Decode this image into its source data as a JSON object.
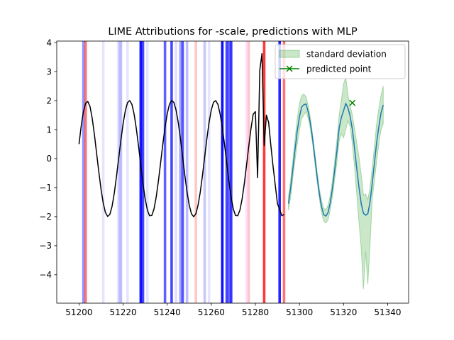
{
  "chart_data": {
    "type": "line",
    "title": "LIME Attributions for -scale, predictions with MLP",
    "xlim": [
      51189.9,
      51349.5
    ],
    "ylim": [
      -4.98,
      4.05
    ],
    "xticks": [
      51200,
      51220,
      51240,
      51260,
      51280,
      51300,
      51320,
      51340
    ],
    "yticks": [
      -4,
      -3,
      -2,
      -1,
      0,
      1,
      2,
      3,
      4
    ],
    "legend": {
      "placement": "top-right",
      "entries": [
        {
          "label": "standard deviation",
          "kind": "patch",
          "color": "#2ca02c"
        },
        {
          "label": "predicted point",
          "kind": "line-marker",
          "color": "#008000"
        }
      ]
    },
    "history_series": {
      "color": "#000000",
      "points": [
        [
          51200,
          0.5
        ],
        [
          51201,
          1.13
        ],
        [
          51202,
          1.62
        ],
        [
          51203,
          1.91
        ],
        [
          51204,
          1.97
        ],
        [
          51205,
          1.79
        ],
        [
          51206,
          1.38
        ],
        [
          51207,
          0.82
        ],
        [
          51208,
          0.17
        ],
        [
          51209,
          -0.47
        ],
        [
          51210,
          -1.06
        ],
        [
          51211,
          -1.54
        ],
        [
          51212,
          -1.86
        ],
        [
          51213,
          -1.99
        ],
        [
          51214,
          -1.92
        ],
        [
          51215,
          -1.64
        ],
        [
          51216,
          -1.19
        ],
        [
          51217,
          -0.61
        ],
        [
          51218,
          0.02
        ],
        [
          51219,
          0.64
        ],
        [
          51220,
          1.2
        ],
        [
          51221,
          1.65
        ],
        [
          51222,
          1.93
        ],
        [
          51223,
          2.0
        ],
        [
          51224,
          1.87
        ],
        [
          51225,
          1.53
        ],
        [
          51226,
          1.03
        ],
        [
          51227,
          0.43
        ],
        [
          51228,
          -0.22
        ],
        [
          51229,
          -0.85
        ],
        [
          51230,
          -1.38
        ],
        [
          51231,
          -1.77
        ],
        [
          51232,
          -1.97
        ],
        [
          51233,
          -1.96
        ],
        [
          51234,
          -1.74
        ],
        [
          51235,
          -1.33
        ],
        [
          51236,
          -0.78
        ],
        [
          51237,
          -0.15
        ],
        [
          51238,
          0.49
        ],
        [
          51239,
          1.07
        ],
        [
          51240,
          1.54
        ],
        [
          51241,
          1.87
        ],
        [
          51242,
          2.0
        ],
        [
          51243,
          1.94
        ],
        [
          51244,
          1.68
        ],
        [
          51245,
          1.25
        ],
        [
          51246,
          0.69
        ],
        [
          51247,
          0.06
        ],
        [
          51248,
          -0.58
        ],
        [
          51249,
          -1.15
        ],
        [
          51250,
          -1.6
        ],
        [
          51251,
          -1.9
        ],
        [
          51252,
          -2.0
        ],
        [
          51253,
          -1.9
        ],
        [
          51254,
          -1.6
        ],
        [
          51255,
          -1.15
        ],
        [
          51256,
          -0.58
        ],
        [
          51257,
          0.06
        ],
        [
          51258,
          0.69
        ],
        [
          51259,
          1.25
        ],
        [
          51260,
          1.68
        ],
        [
          51261,
          1.94
        ],
        [
          51262,
          2.0
        ],
        [
          51263,
          1.87
        ],
        [
          51264,
          1.54
        ],
        [
          51265,
          1.07
        ],
        [
          51266,
          0.49
        ],
        [
          51267,
          -0.15
        ],
        [
          51268,
          -0.78
        ],
        [
          51269,
          -1.33
        ],
        [
          51270,
          -1.74
        ],
        [
          51271,
          -1.96
        ],
        [
          51272,
          -1.97
        ],
        [
          51273,
          -1.77
        ],
        [
          51274,
          -1.38
        ],
        [
          51275,
          -0.85
        ],
        [
          51276,
          -0.22
        ],
        [
          51277,
          0.43
        ],
        [
          51278,
          1.03
        ],
        [
          51279,
          1.53
        ],
        [
          51280,
          1.62
        ],
        [
          51281,
          -0.65
        ],
        [
          51282,
          3.05
        ],
        [
          51283,
          3.62
        ],
        [
          51284,
          0.45
        ],
        [
          51285,
          1.5
        ],
        [
          51286,
          1.25
        ],
        [
          51287,
          0.47
        ],
        [
          51288,
          -0.25
        ],
        [
          51289,
          -0.9
        ],
        [
          51290,
          -1.55
        ],
        [
          51291,
          -1.75
        ],
        [
          51292,
          -1.97
        ],
        [
          51293,
          -1.92
        ]
      ]
    },
    "prediction_series": {
      "color": "#1f77b4",
      "points": [
        [
          51295,
          -1.55
        ],
        [
          51296,
          -1.02
        ],
        [
          51297,
          -0.35
        ],
        [
          51298,
          0.32
        ],
        [
          51299,
          0.95
        ],
        [
          51300,
          1.45
        ],
        [
          51301,
          1.78
        ],
        [
          51302,
          1.86
        ],
        [
          51303,
          1.88
        ],
        [
          51304,
          1.6
        ],
        [
          51305,
          1.2
        ],
        [
          51306,
          0.65
        ],
        [
          51307,
          0.02
        ],
        [
          51308,
          -0.62
        ],
        [
          51309,
          -1.2
        ],
        [
          51310,
          -1.65
        ],
        [
          51311,
          -1.93
        ],
        [
          51312,
          -1.98
        ],
        [
          51313,
          -1.85
        ],
        [
          51314,
          -1.5
        ],
        [
          51315,
          -1.0
        ],
        [
          51316,
          -0.38
        ],
        [
          51317,
          0.28
        ],
        [
          51318,
          1.05
        ],
        [
          51319,
          1.42
        ],
        [
          51320,
          1.65
        ],
        [
          51321,
          1.9
        ],
        [
          51322,
          1.75
        ],
        [
          51323,
          1.45
        ],
        [
          51324,
          1.0
        ],
        [
          51325,
          0.35
        ],
        [
          51326,
          -0.35
        ],
        [
          51327,
          -1.0
        ],
        [
          51328,
          -1.55
        ],
        [
          51329,
          -1.88
        ],
        [
          51330,
          -1.95
        ],
        [
          51331,
          -1.9
        ],
        [
          51332,
          -1.5
        ],
        [
          51333,
          -0.85
        ],
        [
          51334,
          -0.15
        ],
        [
          51335,
          0.55
        ],
        [
          51336,
          1.1
        ],
        [
          51337,
          1.58
        ],
        [
          51338,
          1.85
        ]
      ]
    },
    "std_band": {
      "color": "#2ca02c",
      "upper": [
        -1.32,
        -0.73,
        -0.05,
        0.69,
        1.38,
        1.9,
        2.18,
        2.22,
        2.13,
        1.82,
        1.38,
        0.82,
        0.2,
        -0.45,
        -1.02,
        -1.45,
        -1.72,
        -1.75,
        -1.6,
        -1.25,
        -0.72,
        -0.05,
        0.65,
        1.5,
        2.02,
        2.58,
        2.8,
        2.2,
        1.8,
        1.5,
        1.0,
        0.55,
        0.05,
        -0.55,
        -1.25,
        -1.22,
        -1.42,
        -1.0,
        -0.3,
        0.42,
        1.2,
        1.72,
        2.18,
        2.5
      ],
      "lower": [
        -1.78,
        -1.32,
        -0.65,
        -0.05,
        0.52,
        1.0,
        1.38,
        1.5,
        1.62,
        1.38,
        1.0,
        0.48,
        -0.18,
        -0.8,
        -1.38,
        -1.85,
        -2.15,
        -2.22,
        -2.1,
        -1.75,
        -1.28,
        -0.7,
        -0.12,
        0.62,
        0.85,
        0.72,
        1.0,
        1.3,
        1.1,
        0.5,
        -0.3,
        -1.25,
        -2.2,
        -3.1,
        -4.5,
        -3.2,
        -4.32,
        -3.0,
        -1.4,
        -0.75,
        -0.1,
        0.5,
        1.0,
        1.2
      ]
    },
    "predicted_point": {
      "x": 51324,
      "y": 1.92,
      "color": "#008000"
    },
    "attribution_bands": [
      {
        "x": 51202,
        "color": "#0000ff",
        "alpha": 0.42
      },
      {
        "x": 51203,
        "color": "#ff0000",
        "alpha": 0.55
      },
      {
        "x": 51211,
        "color": "#0000ff",
        "alpha": 0.1
      },
      {
        "x": 51218,
        "color": "#0000ff",
        "alpha": 0.18
      },
      {
        "x": 51219,
        "color": "#0000ff",
        "alpha": 0.26
      },
      {
        "x": 51222,
        "color": "#0000ff",
        "alpha": 0.1
      },
      {
        "x": 51228,
        "color": "#0000ff",
        "alpha": 0.92
      },
      {
        "x": 51229,
        "color": "#0000ff",
        "alpha": 0.72
      },
      {
        "x": 51231,
        "color": "#0000ff",
        "alpha": 0.1
      },
      {
        "x": 51239,
        "color": "#0000ff",
        "alpha": 0.62
      },
      {
        "x": 51242,
        "color": "#0000ff",
        "alpha": 0.72
      },
      {
        "x": 51244,
        "color": "#0000ff",
        "alpha": 0.12
      },
      {
        "x": 51246,
        "color": "#0000ff",
        "alpha": 0.35
      },
      {
        "x": 51247,
        "color": "#0000ff",
        "alpha": 0.66
      },
      {
        "x": 51249,
        "color": "#0000ff",
        "alpha": 0.26
      },
      {
        "x": 51253,
        "color": "#ff0000",
        "alpha": 0.22
      },
      {
        "x": 51257,
        "color": "#0000ff",
        "alpha": 0.22
      },
      {
        "x": 51259,
        "color": "#0000ff",
        "alpha": 0.1
      },
      {
        "x": 51265,
        "color": "#0000ff",
        "alpha": 0.95
      },
      {
        "x": 51267,
        "color": "#0000ff",
        "alpha": 0.72
      },
      {
        "x": 51268,
        "color": "#0000ff",
        "alpha": 0.6
      },
      {
        "x": 51269,
        "color": "#0000ff",
        "alpha": 0.78
      },
      {
        "x": 51276,
        "color": "#ff00ff",
        "alpha": 0.12
      },
      {
        "x": 51277,
        "color": "#ff0000",
        "alpha": 0.22
      },
      {
        "x": 51284,
        "color": "#ff0000",
        "alpha": 0.78
      },
      {
        "x": 51291,
        "color": "#0000ff",
        "alpha": 0.85
      },
      {
        "x": 51293,
        "color": "#ff0000",
        "alpha": 0.55
      }
    ]
  }
}
